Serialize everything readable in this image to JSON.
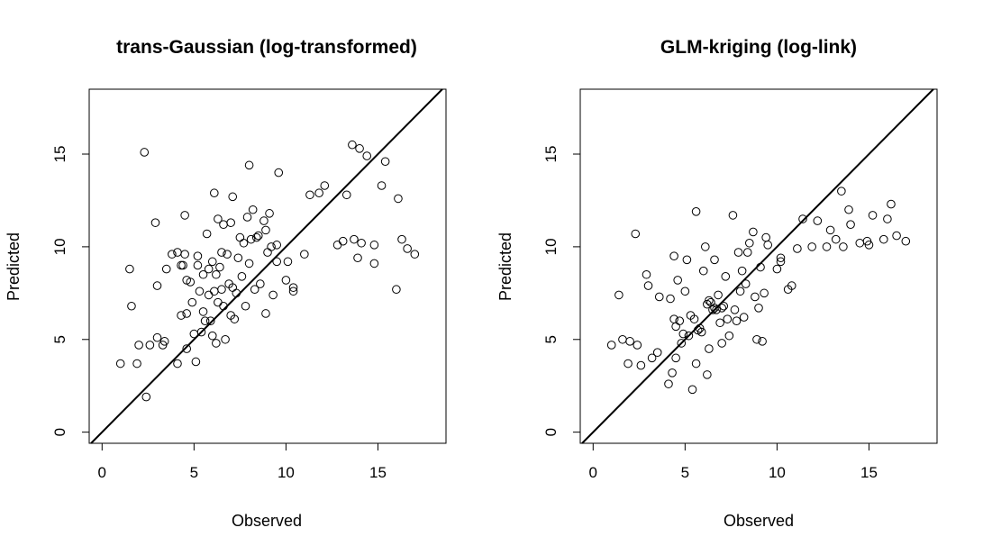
{
  "chart_data": [
    {
      "type": "scatter",
      "title": "trans-Gaussian (log-transformed)",
      "xlabel": "Observed",
      "ylabel": "Predicted",
      "xlim": [
        -0.7,
        18.7
      ],
      "ylim": [
        -0.6,
        18.5
      ],
      "xticks": [
        "0",
        "5",
        "10",
        "15"
      ],
      "yticks": [
        "0",
        "5",
        "10",
        "15"
      ],
      "reference_line": "y = x",
      "grid": false,
      "points": [
        [
          1.0,
          3.7
        ],
        [
          1.5,
          8.8
        ],
        [
          1.6,
          6.8
        ],
        [
          1.9,
          3.7
        ],
        [
          2.0,
          4.7
        ],
        [
          2.3,
          15.1
        ],
        [
          2.4,
          1.9
        ],
        [
          2.6,
          4.7
        ],
        [
          2.9,
          11.3
        ],
        [
          3.0,
          7.9
        ],
        [
          3.0,
          5.1
        ],
        [
          3.3,
          4.7
        ],
        [
          3.4,
          4.9
        ],
        [
          3.5,
          8.8
        ],
        [
          3.8,
          9.6
        ],
        [
          4.1,
          3.7
        ],
        [
          4.1,
          9.7
        ],
        [
          4.3,
          9.0
        ],
        [
          4.3,
          6.3
        ],
        [
          4.4,
          9.0
        ],
        [
          4.5,
          11.7
        ],
        [
          4.5,
          9.6
        ],
        [
          4.6,
          8.2
        ],
        [
          4.6,
          6.4
        ],
        [
          4.6,
          4.5
        ],
        [
          4.8,
          8.1
        ],
        [
          4.9,
          7.0
        ],
        [
          5.0,
          5.3
        ],
        [
          5.1,
          3.8
        ],
        [
          5.2,
          9.5
        ],
        [
          5.2,
          9.0
        ],
        [
          5.3,
          7.6
        ],
        [
          5.4,
          5.4
        ],
        [
          5.5,
          6.5
        ],
        [
          5.5,
          8.5
        ],
        [
          5.6,
          6.0
        ],
        [
          5.7,
          10.7
        ],
        [
          5.8,
          8.8
        ],
        [
          5.8,
          7.4
        ],
        [
          5.9,
          6.0
        ],
        [
          6.0,
          9.2
        ],
        [
          6.0,
          5.2
        ],
        [
          6.1,
          12.9
        ],
        [
          6.1,
          7.6
        ],
        [
          6.2,
          8.5
        ],
        [
          6.2,
          4.8
        ],
        [
          6.3,
          11.5
        ],
        [
          6.3,
          7.0
        ],
        [
          6.4,
          8.9
        ],
        [
          6.5,
          7.7
        ],
        [
          6.5,
          9.7
        ],
        [
          6.6,
          11.2
        ],
        [
          6.6,
          6.8
        ],
        [
          6.7,
          5.0
        ],
        [
          6.8,
          9.6
        ],
        [
          6.9,
          8.0
        ],
        [
          7.0,
          11.3
        ],
        [
          7.0,
          6.3
        ],
        [
          7.1,
          12.7
        ],
        [
          7.1,
          7.8
        ],
        [
          7.2,
          6.1
        ],
        [
          7.3,
          7.5
        ],
        [
          7.4,
          9.4
        ],
        [
          7.5,
          10.5
        ],
        [
          7.6,
          8.4
        ],
        [
          7.7,
          10.2
        ],
        [
          7.8,
          6.8
        ],
        [
          7.9,
          11.6
        ],
        [
          8.0,
          14.4
        ],
        [
          8.0,
          9.1
        ],
        [
          8.1,
          10.4
        ],
        [
          8.2,
          12.0
        ],
        [
          8.3,
          7.7
        ],
        [
          8.4,
          10.5
        ],
        [
          8.5,
          10.6
        ],
        [
          8.6,
          8.0
        ],
        [
          8.8,
          11.4
        ],
        [
          8.9,
          6.4
        ],
        [
          8.9,
          10.9
        ],
        [
          9.0,
          9.7
        ],
        [
          9.1,
          11.8
        ],
        [
          9.2,
          10.0
        ],
        [
          9.3,
          7.4
        ],
        [
          9.5,
          10.1
        ],
        [
          9.5,
          9.2
        ],
        [
          9.6,
          14.0
        ],
        [
          10.0,
          8.2
        ],
        [
          10.1,
          9.2
        ],
        [
          10.4,
          7.6
        ],
        [
          10.4,
          7.8
        ],
        [
          11.0,
          9.6
        ],
        [
          11.3,
          12.8
        ],
        [
          11.8,
          12.9
        ],
        [
          12.1,
          13.3
        ],
        [
          12.8,
          10.1
        ],
        [
          13.1,
          10.3
        ],
        [
          13.3,
          12.8
        ],
        [
          13.6,
          15.5
        ],
        [
          13.7,
          10.4
        ],
        [
          13.9,
          9.4
        ],
        [
          14.0,
          15.3
        ],
        [
          14.1,
          10.2
        ],
        [
          14.4,
          14.9
        ],
        [
          14.8,
          10.1
        ],
        [
          14.8,
          9.1
        ],
        [
          15.2,
          13.3
        ],
        [
          15.4,
          14.6
        ],
        [
          16.0,
          7.7
        ],
        [
          16.1,
          12.6
        ],
        [
          16.3,
          10.4
        ],
        [
          16.6,
          9.9
        ],
        [
          17.0,
          9.6
        ]
      ]
    },
    {
      "type": "scatter",
      "title": "GLM-kriging (log-link)",
      "xlabel": "Observed",
      "ylabel": "Predicted",
      "xlim": [
        -0.7,
        18.7
      ],
      "ylim": [
        -0.6,
        18.5
      ],
      "xticks": [
        "0",
        "5",
        "10",
        "15"
      ],
      "yticks": [
        "0",
        "5",
        "10",
        "15"
      ],
      "reference_line": "y = x",
      "grid": false,
      "points": [
        [
          1.0,
          4.7
        ],
        [
          1.4,
          7.4
        ],
        [
          1.6,
          5.0
        ],
        [
          1.9,
          3.7
        ],
        [
          2.0,
          4.9
        ],
        [
          2.3,
          10.7
        ],
        [
          2.4,
          4.7
        ],
        [
          2.6,
          3.6
        ],
        [
          2.9,
          8.5
        ],
        [
          3.0,
          7.9
        ],
        [
          3.2,
          4.0
        ],
        [
          3.5,
          4.3
        ],
        [
          3.6,
          7.3
        ],
        [
          4.1,
          2.6
        ],
        [
          4.2,
          7.2
        ],
        [
          4.3,
          3.2
        ],
        [
          4.4,
          6.1
        ],
        [
          4.4,
          9.5
        ],
        [
          4.5,
          5.7
        ],
        [
          4.5,
          4.0
        ],
        [
          4.6,
          8.2
        ],
        [
          4.7,
          6.0
        ],
        [
          4.8,
          4.8
        ],
        [
          4.9,
          5.3
        ],
        [
          5.0,
          7.6
        ],
        [
          5.1,
          9.3
        ],
        [
          5.2,
          5.2
        ],
        [
          5.3,
          6.3
        ],
        [
          5.4,
          2.3
        ],
        [
          5.5,
          6.1
        ],
        [
          5.6,
          11.9
        ],
        [
          5.6,
          3.7
        ],
        [
          5.7,
          5.5
        ],
        [
          5.8,
          5.6
        ],
        [
          5.9,
          5.4
        ],
        [
          6.0,
          8.7
        ],
        [
          6.1,
          10.0
        ],
        [
          6.2,
          6.9
        ],
        [
          6.2,
          3.1
        ],
        [
          6.3,
          7.1
        ],
        [
          6.3,
          4.5
        ],
        [
          6.4,
          7.0
        ],
        [
          6.5,
          6.6
        ],
        [
          6.6,
          9.3
        ],
        [
          6.6,
          6.7
        ],
        [
          6.7,
          6.6
        ],
        [
          6.8,
          7.4
        ],
        [
          6.9,
          5.9
        ],
        [
          7.0,
          6.7
        ],
        [
          7.0,
          4.8
        ],
        [
          7.1,
          6.8
        ],
        [
          7.2,
          8.4
        ],
        [
          7.3,
          6.1
        ],
        [
          7.4,
          5.2
        ],
        [
          7.6,
          11.7
        ],
        [
          7.7,
          6.6
        ],
        [
          7.8,
          6.0
        ],
        [
          7.9,
          9.7
        ],
        [
          8.0,
          7.6
        ],
        [
          8.1,
          8.7
        ],
        [
          8.2,
          6.2
        ],
        [
          8.3,
          8.0
        ],
        [
          8.4,
          9.7
        ],
        [
          8.5,
          10.2
        ],
        [
          8.7,
          10.8
        ],
        [
          8.8,
          7.3
        ],
        [
          8.9,
          5.0
        ],
        [
          9.0,
          6.7
        ],
        [
          9.1,
          8.9
        ],
        [
          9.2,
          4.9
        ],
        [
          9.3,
          7.5
        ],
        [
          9.4,
          10.5
        ],
        [
          9.5,
          10.1
        ],
        [
          10.0,
          8.8
        ],
        [
          10.2,
          9.4
        ],
        [
          10.2,
          9.2
        ],
        [
          10.6,
          7.7
        ],
        [
          10.8,
          7.9
        ],
        [
          11.1,
          9.9
        ],
        [
          11.4,
          11.5
        ],
        [
          11.9,
          10.0
        ],
        [
          12.2,
          11.4
        ],
        [
          12.7,
          10.0
        ],
        [
          12.9,
          10.9
        ],
        [
          13.2,
          10.4
        ],
        [
          13.5,
          13.0
        ],
        [
          13.6,
          10.0
        ],
        [
          13.9,
          12.0
        ],
        [
          14.0,
          11.2
        ],
        [
          14.5,
          10.2
        ],
        [
          14.9,
          10.3
        ],
        [
          15.0,
          10.1
        ],
        [
          15.2,
          11.7
        ],
        [
          15.8,
          10.4
        ],
        [
          16.0,
          11.5
        ],
        [
          16.2,
          12.3
        ],
        [
          16.5,
          10.6
        ],
        [
          17.0,
          10.3
        ]
      ]
    }
  ]
}
